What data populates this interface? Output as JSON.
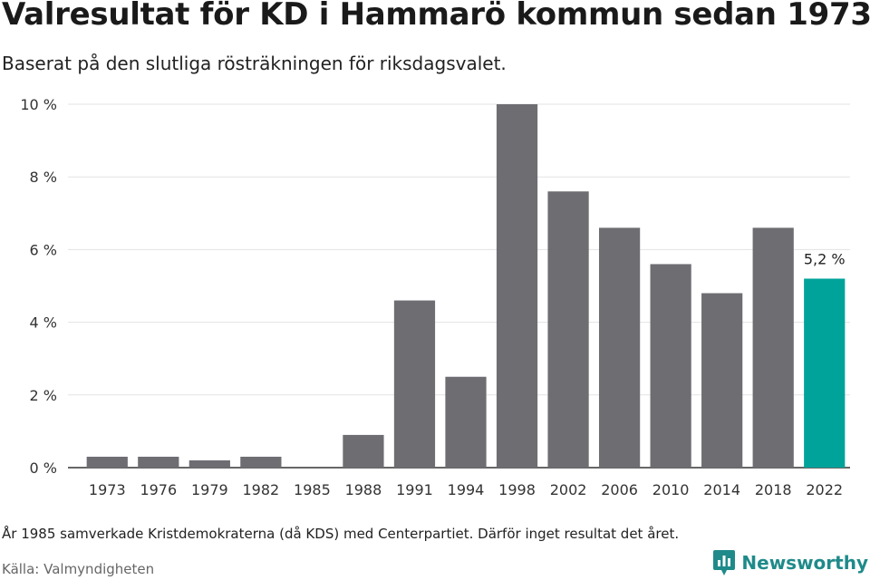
{
  "chart_data": {
    "type": "bar",
    "title": "Valresultat för KD i Hammarö kommun sedan 1973",
    "subtitle": "Baserat på den slutliga rösträkningen för riksdagsvalet.",
    "categories": [
      "1973",
      "1976",
      "1979",
      "1982",
      "1985",
      "1988",
      "1991",
      "1994",
      "1998",
      "2002",
      "2006",
      "2010",
      "2014",
      "2018",
      "2022"
    ],
    "values": [
      0.3,
      0.3,
      0.2,
      0.3,
      null,
      0.9,
      4.6,
      2.5,
      10.0,
      7.6,
      6.6,
      5.6,
      4.8,
      6.6,
      5.2
    ],
    "ylim": [
      0,
      10
    ],
    "yticks": [
      0,
      2,
      4,
      6,
      8,
      10
    ],
    "ytick_labels": [
      "0 %",
      "2 %",
      "4 %",
      "6 %",
      "8 %",
      "10 %"
    ],
    "grid": true,
    "highlight_index": 14,
    "highlight_label": "5,2 %",
    "colors": {
      "bar": "#6e6d72",
      "highlight": "#00a39a",
      "grid": "#e3e3e3",
      "axis": "#333333"
    }
  },
  "footnote": "År 1985 samverkade Kristdemokraterna (då KDS) med Centerpartiet. Därför inget resultat det året.",
  "source": "Källa: Valmyndigheten",
  "logo": {
    "text": "Newsworthy",
    "icon": "newsworthy-logo-icon",
    "color": "#1f8a8a"
  }
}
